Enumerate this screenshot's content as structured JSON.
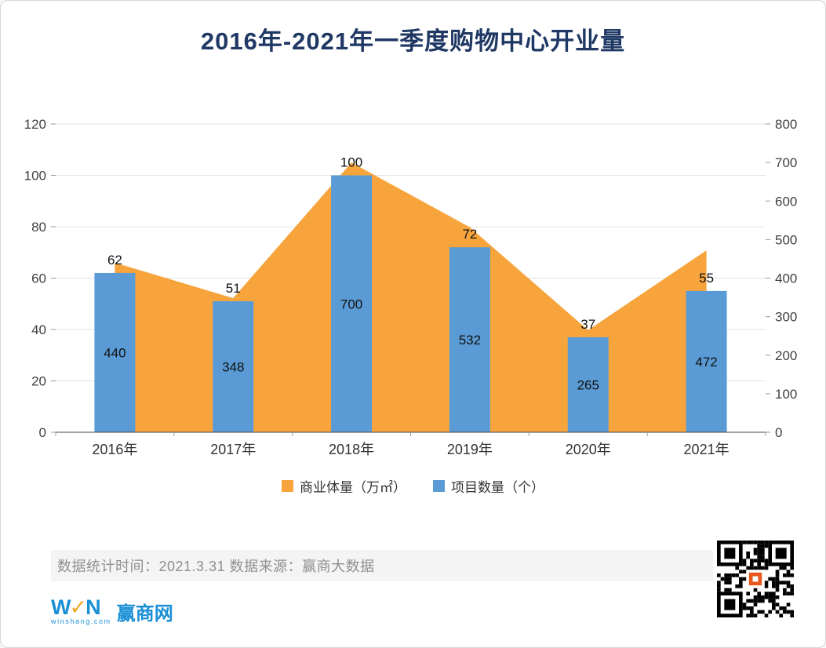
{
  "title": "2016年-2021年一季度购物中心开业量",
  "chart_data": {
    "type": "combo",
    "categories": [
      "2016年",
      "2017年",
      "2018年",
      "2019年",
      "2020年",
      "2021年"
    ],
    "series": [
      {
        "name": "商业体量（万㎡）",
        "type": "area",
        "axis": "right",
        "color": "#F7A43C",
        "values": [
          440,
          348,
          700,
          532,
          265,
          472
        ]
      },
      {
        "name": "项目数量（个）",
        "type": "bar",
        "axis": "left",
        "color": "#5B9BD5",
        "values": [
          62,
          51,
          100,
          72,
          37,
          55
        ]
      }
    ],
    "left_axis": {
      "min": 0,
      "max": 120,
      "step": 20
    },
    "right_axis": {
      "min": 0,
      "max": 800,
      "step": 100
    },
    "grid": true,
    "legend_position": "bottom"
  },
  "legend": [
    {
      "label": "商业体量（万㎡）",
      "color": "#F7A43C"
    },
    {
      "label": "项目数量（个）",
      "color": "#5B9BD5"
    }
  ],
  "footer": {
    "note": "数据统计时间：2021.3.31  数据来源：赢商大数据"
  },
  "branding": {
    "logo_w": "W",
    "logo_mid": "✓",
    "logo_n": "N",
    "logo_cn": "赢商网",
    "logo_domain": "winshang.com"
  },
  "colors": {
    "title": "#1F3864",
    "bar": "#5B9BD5",
    "area": "#F7A43C",
    "axis_text": "#404040",
    "footer_text": "#8F8F8F",
    "logo_blue": "#1B8FD6"
  }
}
